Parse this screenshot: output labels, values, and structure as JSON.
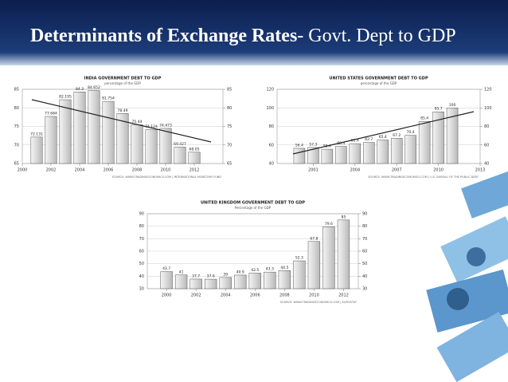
{
  "title": {
    "bold": "Determinants of Exchange Rates",
    "rest": "- Govt. Dept to GDP"
  },
  "chart_data": [
    {
      "type": "bar",
      "title": "INDIA GOVERNMENT DEBT TO GDP",
      "subtitle": "percentage of the GDP",
      "source": "SOURCE: WWW.TRADINGECONOMICS.COM | INTERNATIONAL MONETARY FUND",
      "x": [
        2001,
        2002,
        2003,
        2004,
        2005,
        2006,
        2007,
        2008,
        2009,
        2010,
        2011,
        2012
      ],
      "values": [
        72.131,
        77.684,
        82.195,
        84.3,
        84.652,
        81.754,
        78.49,
        75.44,
        74.124,
        74.473,
        69.427,
        68.05
      ],
      "xlim": [
        2000,
        2014
      ],
      "xticks": [
        2000,
        2002,
        2004,
        2006,
        2008,
        2010,
        2012
      ],
      "ylim": [
        65,
        85
      ],
      "yticks": [
        65,
        70,
        75,
        80,
        85
      ],
      "y2lim": [
        65,
        85
      ],
      "y2ticks": [
        65,
        70,
        75,
        80,
        85
      ],
      "color": "#d8d8d8",
      "grid": true
    },
    {
      "type": "bar",
      "title": "UNITED STATES GOVERNMENT DEBT TO GDP",
      "subtitle": "percentage of the GDP",
      "source": "SOURCE: WWW.TRADINGECONOMICS.COM | U.S. BUREAU OF THE PUBLIC DEBT",
      "x": [
        2000,
        2001,
        2002,
        2003,
        2004,
        2005,
        2006,
        2007,
        2008,
        2009,
        2010,
        2011
      ],
      "values": [
        56.4,
        57.3,
        55.4,
        58.4,
        61.4,
        62.7,
        65.4,
        67.2,
        70.4,
        85.4,
        95.7,
        100
      ],
      "xlim": [
        1998.4,
        2013
      ],
      "xticks": [
        2001,
        2004,
        2007,
        2010,
        2013
      ],
      "ylim": [
        40,
        120
      ],
      "yticks": [
        40,
        60,
        80,
        100,
        120
      ],
      "y2lim": [
        40,
        120
      ],
      "y2ticks": [
        40,
        60,
        80,
        100,
        120
      ],
      "color": "#d8d8d8",
      "grid": true
    },
    {
      "type": "bar",
      "title": "UNITED KINGDOM GOVERNMENT DEBT TO GDP",
      "subtitle": "Percentage of the GDP",
      "source": "SOURCE: WWW.TRADINGECONOMICS.COM | EUROSTAT",
      "x": [
        2000,
        2001,
        2002,
        2003,
        2004,
        2005,
        2006,
        2007,
        2008,
        2009,
        2010,
        2011,
        2012
      ],
      "values": [
        43.7,
        41,
        37.7,
        37.6,
        39,
        40.9,
        42.5,
        43.3,
        44.5,
        52.3,
        67.8,
        79.6,
        85
      ],
      "xlim": [
        1998.7,
        2013
      ],
      "xticks": [
        2000,
        2002,
        2004,
        2006,
        2008,
        2010,
        2012
      ],
      "ylim": [
        30,
        90
      ],
      "yticks": [
        30,
        40,
        50,
        60,
        70,
        80,
        90
      ],
      "y2lim": [
        30,
        90
      ],
      "y2ticks": [
        30,
        40,
        50,
        60,
        70,
        80,
        90
      ],
      "color": "#d8d8d8",
      "grid": true
    }
  ]
}
